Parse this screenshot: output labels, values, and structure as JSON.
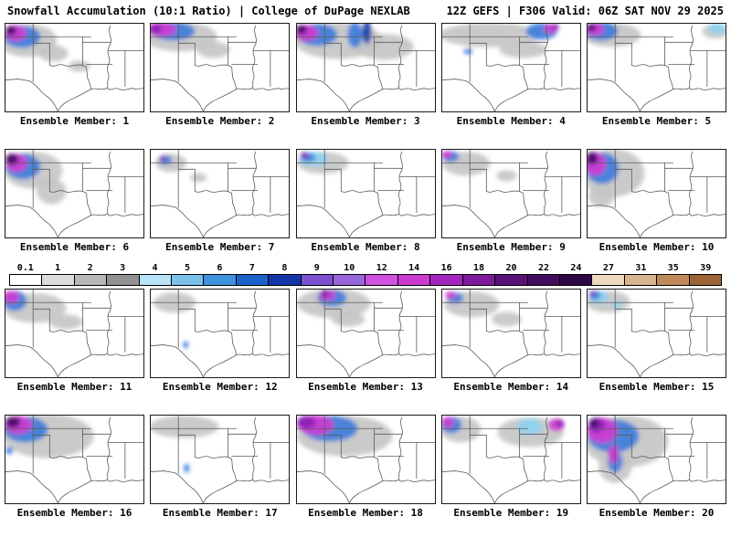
{
  "header": {
    "title": "Snowfall Accumulation (10:1 Ratio) | College of DuPage NEXLAB",
    "model_info": "12Z GEFS | F306 Valid: 06Z SAT NOV 29 2025"
  },
  "colorbar": {
    "stops": [
      {
        "label": "0.1",
        "color": "#ffffff"
      },
      {
        "label": "1",
        "color": "#dcdcdc"
      },
      {
        "label": "2",
        "color": "#b8b8b8"
      },
      {
        "label": "3",
        "color": "#929292"
      },
      {
        "label": "4",
        "color": "#b8e2f8"
      },
      {
        "label": "5",
        "color": "#7cc0ec"
      },
      {
        "label": "6",
        "color": "#3e92dc"
      },
      {
        "label": "7",
        "color": "#1d62c8"
      },
      {
        "label": "8",
        "color": "#1337a8"
      },
      {
        "label": "9",
        "color": "#7a52cf"
      },
      {
        "label": "10",
        "color": "#9a66db"
      },
      {
        "label": "12",
        "color": "#cf52e0"
      },
      {
        "label": "14",
        "color": "#cb3bd0"
      },
      {
        "label": "16",
        "color": "#a327bc"
      },
      {
        "label": "18",
        "color": "#7d1a9c"
      },
      {
        "label": "20",
        "color": "#5a1178"
      },
      {
        "label": "22",
        "color": "#420b5c"
      },
      {
        "label": "24",
        "color": "#2f0745"
      },
      {
        "label": "27",
        "color": "#ecd9c0"
      },
      {
        "label": "31",
        "color": "#d9b491"
      },
      {
        "label": "35",
        "color": "#bf8a5a"
      },
      {
        "label": "39",
        "color": "#9c6434"
      }
    ]
  },
  "palette": {
    "g": "#c6c6c6",
    "G": "#a0a0a0",
    "c": "#8fd2f0",
    "b": "#3d7edc",
    "B": "#1a3fae",
    "m": "#cf3bd3",
    "p": "#8c22b4",
    "P": "#450a66"
  },
  "panels": [
    {
      "label": "Ensemble Member: 1",
      "blobs": [
        [
          24,
          18,
          32,
          18,
          "g"
        ],
        [
          52,
          32,
          16,
          9,
          "g"
        ],
        [
          80,
          46,
          12,
          6,
          "g"
        ],
        [
          18,
          14,
          20,
          12,
          "b"
        ],
        [
          11,
          10,
          12,
          9,
          "m"
        ],
        [
          6,
          7,
          6,
          5,
          "P"
        ]
      ]
    },
    {
      "label": "Ensemble Member: 2",
      "blobs": [
        [
          32,
          14,
          40,
          16,
          "g"
        ],
        [
          68,
          28,
          18,
          9,
          "g"
        ],
        [
          24,
          8,
          24,
          10,
          "b"
        ],
        [
          12,
          6,
          16,
          8,
          "m"
        ],
        [
          5,
          5,
          7,
          5,
          "p"
        ]
      ]
    },
    {
      "label": "Ensemble Member: 3",
      "blobs": [
        [
          45,
          18,
          48,
          20,
          "g"
        ],
        [
          95,
          25,
          32,
          14,
          "g"
        ],
        [
          22,
          12,
          22,
          12,
          "b"
        ],
        [
          63,
          12,
          8,
          14,
          "b"
        ],
        [
          76,
          9,
          5,
          13,
          "B"
        ],
        [
          10,
          10,
          13,
          9,
          "m"
        ],
        [
          5,
          6,
          6,
          5,
          "P"
        ]
      ]
    },
    {
      "label": "Ensemble Member: 4",
      "blobs": [
        [
          52,
          12,
          56,
          13,
          "g"
        ],
        [
          88,
          28,
          26,
          9,
          "g"
        ],
        [
          108,
          8,
          17,
          9,
          "b"
        ],
        [
          28,
          30,
          5,
          3,
          "b"
        ],
        [
          118,
          5,
          8,
          5,
          "m"
        ],
        [
          123,
          3,
          4,
          3,
          "p"
        ]
      ]
    },
    {
      "label": "Ensemble Member: 5",
      "blobs": [
        [
          26,
          12,
          32,
          13,
          "g"
        ],
        [
          139,
          8,
          14,
          8,
          "g"
        ],
        [
          15,
          8,
          18,
          10,
          "b"
        ],
        [
          141,
          5,
          10,
          6,
          "c"
        ],
        [
          8,
          6,
          10,
          7,
          "m"
        ],
        [
          4,
          4,
          5,
          4,
          "P"
        ]
      ]
    },
    {
      "label": "Ensemble Member: 6",
      "blobs": [
        [
          30,
          22,
          32,
          20,
          "g"
        ],
        [
          50,
          45,
          16,
          14,
          "g"
        ],
        [
          19,
          18,
          19,
          14,
          "b"
        ],
        [
          12,
          14,
          12,
          10,
          "m"
        ],
        [
          7,
          10,
          7,
          6,
          "P"
        ]
      ]
    },
    {
      "label": "Ensemble Member: 7",
      "blobs": [
        [
          22,
          14,
          17,
          10,
          "g"
        ],
        [
          52,
          30,
          9,
          5,
          "g"
        ],
        [
          16,
          11,
          7,
          5,
          "b"
        ],
        [
          13,
          9,
          3,
          3,
          "p"
        ]
      ]
    },
    {
      "label": "Ensemble Member: 8",
      "blobs": [
        [
          28,
          14,
          28,
          12,
          "g"
        ],
        [
          18,
          10,
          16,
          8,
          "c"
        ],
        [
          12,
          8,
          8,
          5,
          "b"
        ],
        [
          8,
          6,
          4,
          4,
          "p"
        ]
      ]
    },
    {
      "label": "Ensemble Member: 9",
      "blobs": [
        [
          26,
          15,
          26,
          13,
          "g"
        ],
        [
          70,
          28,
          11,
          6,
          "g"
        ],
        [
          9,
          7,
          9,
          6,
          "b"
        ],
        [
          5,
          5,
          6,
          4,
          "m"
        ]
      ]
    },
    {
      "label": "Ensemble Member: 10",
      "blobs": [
        [
          28,
          25,
          34,
          26,
          "g"
        ],
        [
          15,
          50,
          14,
          12,
          "g"
        ],
        [
          16,
          20,
          18,
          17,
          "b"
        ],
        [
          8,
          15,
          12,
          13,
          "m"
        ],
        [
          5,
          9,
          6,
          7,
          "P"
        ]
      ]
    },
    {
      "label": "Ensemble Member: 11",
      "blobs": [
        [
          32,
          20,
          34,
          16,
          "g"
        ],
        [
          66,
          35,
          18,
          8,
          "g"
        ],
        [
          10,
          12,
          13,
          11,
          "b"
        ],
        [
          6,
          8,
          9,
          7,
          "m"
        ]
      ]
    },
    {
      "label": "Ensemble Member: 12",
      "blobs": [
        [
          26,
          14,
          23,
          11,
          "g"
        ],
        [
          38,
          60,
          3,
          4,
          "b"
        ]
      ]
    },
    {
      "label": "Ensemble Member: 13",
      "blobs": [
        [
          40,
          15,
          40,
          16,
          "g"
        ],
        [
          56,
          32,
          18,
          8,
          "g"
        ],
        [
          38,
          9,
          16,
          9,
          "b"
        ],
        [
          33,
          6,
          9,
          6,
          "m"
        ],
        [
          30,
          4,
          5,
          4,
          "p"
        ]
      ]
    },
    {
      "label": "Ensemble Member: 14",
      "blobs": [
        [
          32,
          16,
          30,
          14,
          "g"
        ],
        [
          70,
          32,
          16,
          8,
          "g"
        ],
        [
          14,
          9,
          9,
          6,
          "b"
        ],
        [
          9,
          6,
          6,
          4,
          "m"
        ]
      ]
    },
    {
      "label": "Ensemble Member: 15",
      "blobs": [
        [
          22,
          13,
          24,
          12,
          "g"
        ],
        [
          12,
          8,
          11,
          7,
          "c"
        ],
        [
          32,
          16,
          5,
          4,
          "c"
        ],
        [
          8,
          6,
          6,
          5,
          "b"
        ],
        [
          5,
          4,
          3,
          3,
          "p"
        ]
      ]
    },
    {
      "label": "Ensemble Member: 16",
      "blobs": [
        [
          46,
          22,
          50,
          24,
          "g"
        ],
        [
          22,
          15,
          24,
          14,
          "b"
        ],
        [
          4,
          38,
          4,
          4,
          "b"
        ],
        [
          14,
          10,
          15,
          10,
          "m"
        ],
        [
          8,
          7,
          8,
          6,
          "P"
        ]
      ]
    },
    {
      "label": "Ensemble Member: 17",
      "blobs": [
        [
          36,
          12,
          38,
          12,
          "g"
        ],
        [
          39,
          57,
          3,
          5,
          "b"
        ]
      ]
    },
    {
      "label": "Ensemble Member: 18",
      "blobs": [
        [
          52,
          22,
          52,
          22,
          "g"
        ],
        [
          36,
          14,
          30,
          14,
          "b"
        ],
        [
          20,
          10,
          20,
          11,
          "m"
        ],
        [
          10,
          7,
          10,
          7,
          "p"
        ]
      ]
    },
    {
      "label": "Ensemble Member: 19",
      "blobs": [
        [
          20,
          15,
          22,
          14,
          "g"
        ],
        [
          96,
          18,
          36,
          16,
          "g"
        ],
        [
          10,
          10,
          11,
          9,
          "b"
        ],
        [
          95,
          12,
          14,
          9,
          "c"
        ],
        [
          6,
          7,
          7,
          6,
          "m"
        ],
        [
          124,
          10,
          9,
          7,
          "m"
        ],
        [
          128,
          8,
          4,
          4,
          "p"
        ]
      ]
    },
    {
      "label": "Ensemble Member: 20",
      "blobs": [
        [
          42,
          28,
          46,
          28,
          "g"
        ],
        [
          30,
          55,
          18,
          18,
          "g"
        ],
        [
          28,
          22,
          28,
          18,
          "b"
        ],
        [
          30,
          50,
          8,
          12,
          "b"
        ],
        [
          16,
          16,
          17,
          14,
          "m"
        ],
        [
          28,
          42,
          6,
          10,
          "m"
        ],
        [
          10,
          10,
          9,
          8,
          "p"
        ],
        [
          7,
          8,
          5,
          5,
          "P"
        ]
      ]
    }
  ]
}
